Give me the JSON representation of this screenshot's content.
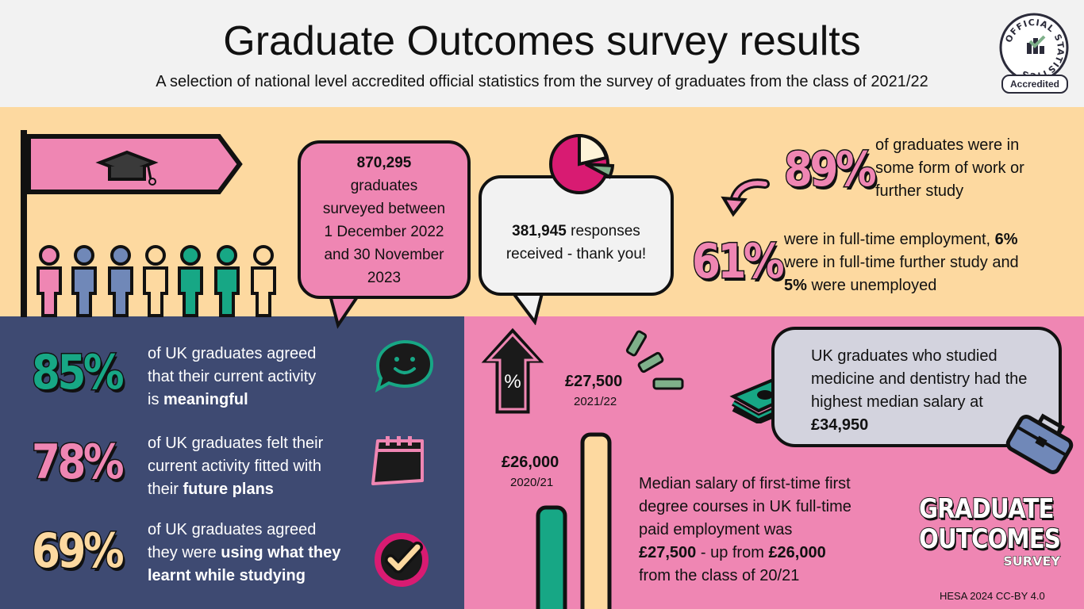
{
  "header": {
    "title": "Graduate Outcomes survey results",
    "subtitle": "A selection of national level accredited official statistics from the survey of graduates from the class of 2021/22"
  },
  "badge": {
    "ring_text": "OFFICIAL STATISTICS",
    "label": "Accredited"
  },
  "surveyed": {
    "count": "870,295",
    "line1": "graduates",
    "line2": "surveyed between",
    "line3": "1 December 2022",
    "line4": "and 30 November",
    "line5": "2023"
  },
  "responses": {
    "count": "381,945",
    "text1": " responses",
    "text2": "received - thank you!"
  },
  "work_study": {
    "percent": "89%",
    "line1": "of graduates were in",
    "line2": "some form of work or",
    "line3": "further study"
  },
  "employment": {
    "percent": "61%",
    "t1": "were in full-time employment, ",
    "b1": "6%",
    "t2": "were in full-time further study and",
    "b2": "5%",
    "t3": " were unemployed"
  },
  "meaningful": {
    "percent": "85%",
    "line1": "of UK graduates agreed",
    "line2": "that their current activity",
    "line3_pre": "is ",
    "line3_bold": "meaningful"
  },
  "future": {
    "percent": "78%",
    "line1": "of UK graduates felt their",
    "line2": "current activity fitted with",
    "line3_pre": "their ",
    "line3_bold": "future plans"
  },
  "learnt": {
    "percent": "69%",
    "line1": "of UK graduates agreed",
    "line2_pre": "they were ",
    "line2_bold": "using what they",
    "line3_bold": "learnt while studying"
  },
  "salary": {
    "current_value": "£27,500",
    "current_year": "2021/22",
    "previous_value": "£26,000",
    "previous_year": "2020/21",
    "percent_symbol": "%",
    "l1": "Median salary of first-time first",
    "l2": "degree courses in UK full-time",
    "l3": "paid employment was",
    "l4_b1": "£27,500",
    "l4_t": " - up from ",
    "l4_b2": "£26,000",
    "l5": "from the class of 20/21"
  },
  "medicine": {
    "l1": "UK graduates who studied",
    "l2": "medicine and dentistry had the",
    "l3": "highest median salary at",
    "l4": "£34,950"
  },
  "logo": {
    "line1": "GRADUATE",
    "line2": "OUTCOMES",
    "line3": "SURVEY"
  },
  "credit": "HESA 2024 CC-BY 4.0",
  "colors": {
    "pink": "#ef86b3",
    "peach": "#fdd9a0",
    "navy": "#3e4a72",
    "teal": "#17a785",
    "magenta": "#d81b72",
    "sage": "#7fb08a",
    "blue": "#7088b8"
  }
}
